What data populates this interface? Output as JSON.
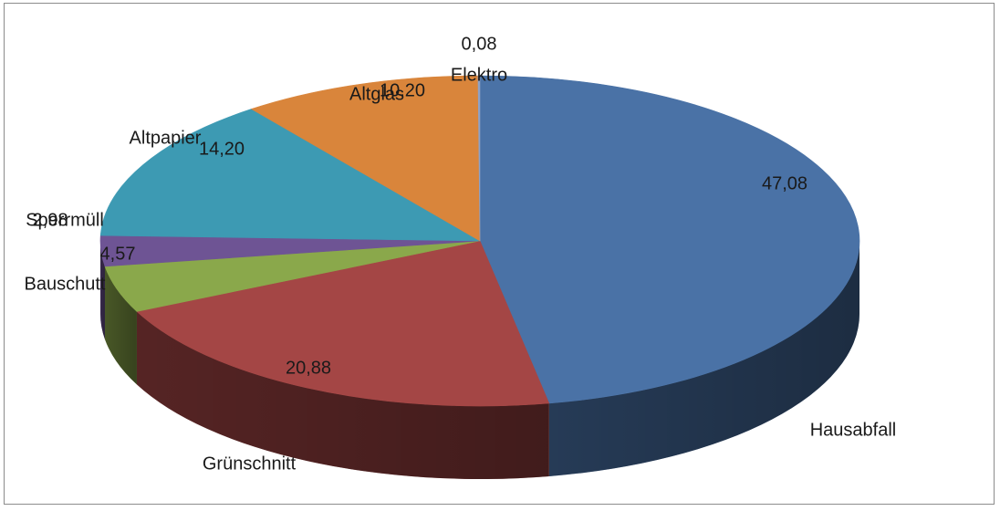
{
  "chart_data": {
    "type": "pie",
    "three_d": true,
    "title": "",
    "legend": "none",
    "slices": [
      {
        "name": "Hausabfall",
        "value": 47.08,
        "label": "47,08",
        "color": "#4a72a6"
      },
      {
        "name": "Grünschnitt",
        "value": 20.88,
        "label": "20,88",
        "color": "#a44645"
      },
      {
        "name": "Bauschutt",
        "value": 4.57,
        "label": "4,57",
        "color": "#8aa84b"
      },
      {
        "name": "Sperrmüll",
        "value": 2.98,
        "label": "2,98",
        "color": "#6e5494"
      },
      {
        "name": "Altpapier",
        "value": 14.2,
        "label": "14,20",
        "color": "#3d9ab3"
      },
      {
        "name": "Altglas",
        "value": 10.2,
        "label": "10,20",
        "color": "#d9853b"
      },
      {
        "name": "Elektro",
        "value": 0.08,
        "label": "0,08",
        "color": "#8ea3c8"
      }
    ]
  }
}
